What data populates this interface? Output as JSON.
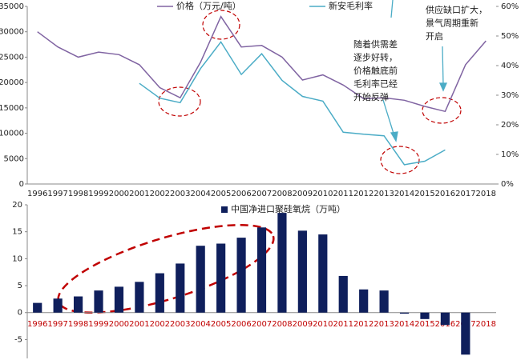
{
  "chart_data": [
    {
      "type": "line",
      "categories": [
        "1996",
        "1997",
        "1998",
        "1999",
        "2000",
        "2001",
        "2002",
        "2003",
        "2004",
        "2005",
        "2006",
        "2007",
        "2008",
        "2009",
        "2010",
        "2011",
        "2012",
        "2013",
        "2014",
        "2015",
        "2016",
        "2017",
        "2018"
      ],
      "series": [
        {
          "name": "价格（万元/吨）",
          "color": "#8064a2",
          "values": [
            30000,
            27000,
            25000,
            26000,
            25500,
            23500,
            19000,
            17000,
            24000,
            33000,
            27000,
            27300,
            25000,
            20500,
            21500,
            19500,
            16800,
            17000,
            16500,
            15300,
            14300,
            23500,
            28200
          ]
        },
        {
          "name": "新安毛利率",
          "color": "#4bacc6",
          "axis": "y2",
          "values": [
            null,
            null,
            null,
            null,
            null,
            34,
            29,
            27.5,
            39,
            48,
            37,
            44,
            35,
            29.6,
            28,
            17.5,
            16.8,
            16.3,
            6.5,
            7.7,
            11.5,
            null,
            null
          ]
        }
      ],
      "ylim": [
        0,
        35000
      ],
      "yticks": [
        0,
        5000,
        10000,
        15000,
        20000,
        25000,
        30000,
        35000
      ],
      "y2lim": [
        0,
        60
      ],
      "y2ticks": [
        {
          "value": 0,
          "label": "0%"
        },
        {
          "value": 10,
          "label": "10%"
        },
        {
          "value": 20,
          "label": "20%"
        },
        {
          "value": 30,
          "label": "30%"
        },
        {
          "value": 40,
          "label": "40%"
        },
        {
          "value": 50,
          "label": "50%"
        },
        {
          "value": 60,
          "label": "60%"
        }
      ],
      "annotations": [
        [
          "随着供需差",
          "逐步好转，",
          "价格触底前",
          "毛利率已经",
          "开始反弹"
        ],
        [
          "供应缺口扩大，",
          "景气周期重新",
          "开启"
        ]
      ],
      "grid": false
    },
    {
      "type": "bar",
      "categories": [
        "1996",
        "1997",
        "1998",
        "1999",
        "2000",
        "2001",
        "2002",
        "2003",
        "2004",
        "2005",
        "2006",
        "2007",
        "2008",
        "2009",
        "2010",
        "2011",
        "2012",
        "2013",
        "2014",
        "2015",
        "2016",
        "2017",
        "2018"
      ],
      "series": [
        {
          "name": "中国净进口聚硅氧烷（万吨）",
          "color": "#0f1f5c",
          "values": [
            1.8,
            2.6,
            3.0,
            4.1,
            4.8,
            5.7,
            7.3,
            9.1,
            12.4,
            12.8,
            13.9,
            15.8,
            18.5,
            15.2,
            14.5,
            6.8,
            4.3,
            4.1,
            -0.2,
            -1.2,
            -2.3,
            -7.8,
            0
          ]
        }
      ],
      "category_color": "#c00000",
      "ylim": [
        -8.5,
        20
      ],
      "yticks": [
        -5,
        0,
        5,
        10,
        15,
        20
      ],
      "grid": false
    }
  ]
}
